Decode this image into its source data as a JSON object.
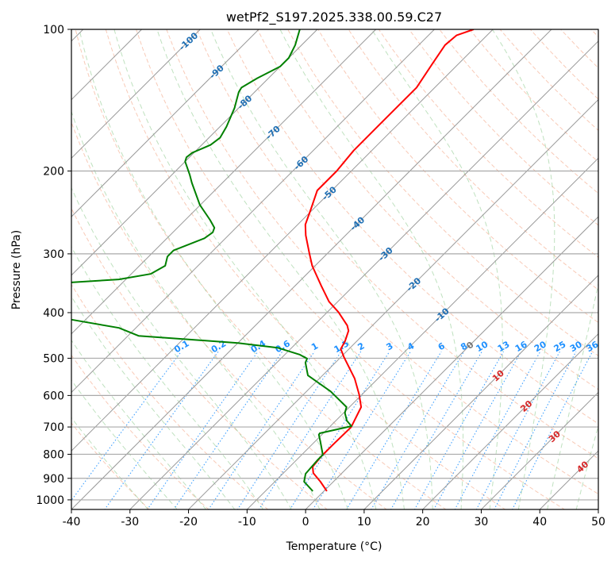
{
  "chart_data": {
    "type": "line",
    "subtype": "skew-t log-p",
    "title": "wetPf2_S197.2025.338.00.59.C27",
    "xlabel": "Temperature (°C)",
    "ylabel": "Pressure (hPa)",
    "xlim": [
      -40,
      50
    ],
    "ylim": [
      1050,
      100
    ],
    "x_ticks": [
      -40,
      -30,
      -20,
      -10,
      0,
      10,
      20,
      30,
      40,
      50
    ],
    "y_ticks": [
      100,
      200,
      300,
      400,
      500,
      600,
      700,
      800,
      900,
      1000
    ],
    "grid": true,
    "isotherm_labels": [
      -100,
      -90,
      -80,
      -70,
      -60,
      -50,
      -40,
      -30,
      -20,
      -10,
      0,
      10,
      20,
      30,
      40
    ],
    "mixing_ratio_labels": [
      "0.1",
      "0.2",
      "0.4",
      "0.6",
      "1",
      "1.5",
      "2",
      "3",
      "4",
      "6",
      "8",
      "10",
      "13",
      "16",
      "20",
      "25",
      "30",
      "36"
    ],
    "series": [
      {
        "name": "Temperature",
        "color": "#ff0000",
        "pressure": [
          958,
          915,
          877,
          850,
          808,
          762,
          700,
          635,
          597,
          552,
          497,
          478,
          460,
          437,
          426,
          399,
          379,
          351,
          318,
          300,
          274,
          260,
          241,
          220,
          200,
          181,
          161,
          143,
          133,
          118,
          108,
          103,
          100
        ],
        "temperature": [
          0.5,
          -2.2,
          -4.9,
          -6.1,
          -6.4,
          -6.4,
          -6.3,
          -8.0,
          -10.5,
          -14.0,
          -19.5,
          -21.4,
          -22.0,
          -23.2,
          -24.3,
          -28.1,
          -31.5,
          -35.5,
          -40.5,
          -43.0,
          -46.8,
          -48.7,
          -50.4,
          -52.5,
          -52.5,
          -53.1,
          -53.1,
          -53.1,
          -53.1,
          -54.5,
          -55.5,
          -55.2,
          -53.3
        ]
      },
      {
        "name": "Dewpoint",
        "color": "#008000",
        "pressure": [
          958,
          915,
          880,
          824,
          802,
          753,
          727,
          722,
          697,
          679,
          653,
          635,
          588,
          544,
          511,
          501,
          491,
          475,
          464,
          448,
          431,
          414,
          380,
          345,
          340,
          331,
          318,
          304,
          295,
          278,
          270,
          264,
          254,
          236,
          212,
          204,
          191,
          187,
          183,
          176,
          170,
          161,
          147,
          136,
          133,
          127,
          120,
          115,
          108,
          100
        ],
        "temperature": [
          -1.9,
          -5.0,
          -6.1,
          -6.4,
          -6.4,
          -9.0,
          -10.5,
          -10.6,
          -6.4,
          -8.1,
          -9.8,
          -10.5,
          -15.9,
          -22.5,
          -25.1,
          -25.5,
          -27.5,
          -32.4,
          -40.0,
          -58.2,
          -62.9,
          -72.4,
          -95.0,
          -78.8,
          -71.2,
          -66.7,
          -65.6,
          -66.8,
          -66.8,
          -63.6,
          -63.2,
          -63.7,
          -65.8,
          -70.1,
          -75.2,
          -76.9,
          -80.0,
          -80.5,
          -80.3,
          -78.5,
          -78.1,
          -78.9,
          -80.7,
          -82.7,
          -83.0,
          -81.9,
          -80.0,
          -80.0,
          -81.1,
          -83.0
        ]
      }
    ]
  }
}
